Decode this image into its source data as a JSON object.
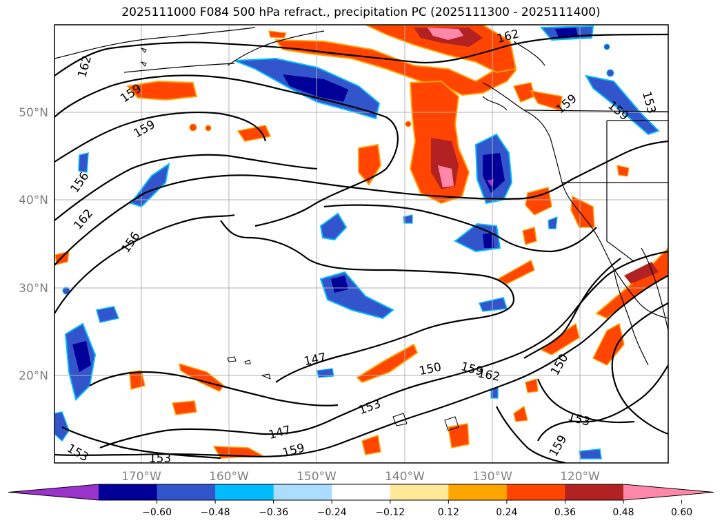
{
  "title": "2025111000 F084 500 hPa refract., precipitation PC (2025111300 - 2025111400)",
  "lat_labels": [
    "50°N",
    "40°N",
    "30°N",
    "20°N"
  ],
  "lon_labels": [
    "170°W",
    "160°W",
    "150°W",
    "140°W",
    "130°W",
    "120°W"
  ],
  "colorbar": {
    "ticks": [
      "−0.60",
      "−0.48",
      "−0.36",
      "−0.24",
      "−0.12",
      "0.12",
      "0.24",
      "0.36",
      "0.48",
      "0.60"
    ],
    "colors": [
      "#9933cc",
      "#000099",
      "#3355cc",
      "#00bbff",
      "#aaddff",
      "#ffffff",
      "#ffe999",
      "#ffa500",
      "#ff4500",
      "#b22222",
      "#ff88aa"
    ]
  },
  "contour_labels": [
    "162",
    "159",
    "159",
    "156",
    "162",
    "156",
    "147",
    "150",
    "153",
    "147",
    "159",
    "159",
    "162",
    "150",
    "153",
    "159",
    "153",
    "153",
    "162",
    "159",
    "159",
    "153"
  ]
}
